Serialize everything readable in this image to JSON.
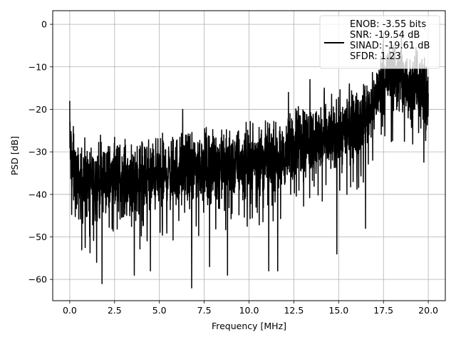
{
  "chart_data": {
    "type": "line",
    "xlabel": "Frequency [MHz]",
    "ylabel": "PSD [dB]",
    "xlim": [
      -0.95,
      20.95
    ],
    "ylim": [
      -65.0,
      3.2
    ],
    "xticks": [
      0.0,
      2.5,
      5.0,
      7.5,
      10.0,
      12.5,
      15.0,
      17.5,
      20.0
    ],
    "xtick_labels": [
      "0.0",
      "2.5",
      "5.0",
      "7.5",
      "10.0",
      "12.5",
      "15.0",
      "17.5",
      "20.0"
    ],
    "yticks": [
      0,
      -10,
      -20,
      -30,
      -40,
      -50,
      -60
    ],
    "ytick_labels": [
      "0",
      "−10",
      "−20",
      "−30",
      "−40",
      "−50",
      "−60"
    ],
    "grid": true,
    "legend_position": "top-right",
    "line_color": "#000000",
    "series": [
      {
        "name": "ENOB: -3.55 bits\nSNR: -19.54 dB\nSINAD: -19.61 dB\nSFDR: 1.23",
        "legend_lines": [
          "ENOB: -3.55 bits",
          "SNR: -19.54 dB",
          "SINAD: -19.61 dB",
          "SFDR: 1.23"
        ],
        "trend": {
          "x": [
            0.0,
            0.2,
            0.5,
            1.0,
            2.0,
            3.0,
            4.0,
            5.0,
            6.0,
            7.0,
            8.0,
            9.0,
            10.0,
            11.0,
            12.0,
            12.5,
            13.0,
            14.0,
            15.0,
            16.0,
            16.5,
            17.0,
            17.5,
            18.0,
            18.5,
            19.0,
            19.5,
            20.0
          ],
          "upper": [
            -18,
            -24,
            -27,
            -27,
            -25,
            -26,
            -25,
            -25,
            -24,
            -23,
            -23,
            -23,
            -22,
            -22,
            -22,
            -17,
            -16,
            -17,
            -16,
            -14,
            -12,
            -10,
            -3,
            -1,
            -3,
            -4,
            -3,
            -9
          ],
          "lower": [
            -40,
            -46,
            -48,
            -48,
            -48,
            -47,
            -47,
            -46,
            -45,
            -44,
            -44,
            -43,
            -42,
            -41,
            -40,
            -39,
            -38,
            -38,
            -36,
            -33,
            -31,
            -26,
            -23,
            -22,
            -24,
            -26,
            -25,
            -30
          ]
        },
        "spikes_down": [
          {
            "x": 1.8,
            "y": -61.0
          },
          {
            "x": 1.5,
            "y": -56.0
          },
          {
            "x": 3.6,
            "y": -59.0
          },
          {
            "x": 4.5,
            "y": -58.0
          },
          {
            "x": 6.8,
            "y": -62.0
          },
          {
            "x": 7.8,
            "y": -57.0
          },
          {
            "x": 8.8,
            "y": -59.0
          },
          {
            "x": 11.1,
            "y": -58.0
          },
          {
            "x": 11.6,
            "y": -58.0
          },
          {
            "x": 14.9,
            "y": -54.0
          },
          {
            "x": 16.5,
            "y": -48.0
          }
        ],
        "spikes_up": [
          {
            "x": 0.0,
            "y": -18.0
          },
          {
            "x": 0.2,
            "y": -24.0
          },
          {
            "x": 6.3,
            "y": -20.0
          },
          {
            "x": 12.2,
            "y": -16.0
          },
          {
            "x": 13.4,
            "y": -13.0
          },
          {
            "x": 14.2,
            "y": -15.0
          },
          {
            "x": 15.6,
            "y": -14.0
          },
          {
            "x": 17.5,
            "y": -2.0
          },
          {
            "x": 18.5,
            "y": -3.0
          },
          {
            "x": 19.9,
            "y": -10.0
          }
        ]
      }
    ]
  }
}
